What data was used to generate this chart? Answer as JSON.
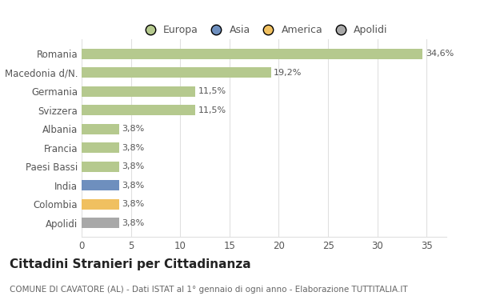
{
  "categories": [
    "Romania",
    "Macedonia d/N.",
    "Germania",
    "Svizzera",
    "Albania",
    "Francia",
    "Paesi Bassi",
    "India",
    "Colombia",
    "Apolidi"
  ],
  "values": [
    34.6,
    19.2,
    11.5,
    11.5,
    3.8,
    3.8,
    3.8,
    3.8,
    3.8,
    3.8
  ],
  "labels": [
    "34,6%",
    "19,2%",
    "11,5%",
    "11,5%",
    "3,8%",
    "3,8%",
    "3,8%",
    "3,8%",
    "3,8%",
    "3,8%"
  ],
  "colors": [
    "#b5c98e",
    "#b5c98e",
    "#b5c98e",
    "#b5c98e",
    "#b5c98e",
    "#b5c98e",
    "#b5c98e",
    "#6e8fbe",
    "#f0c060",
    "#a8a8a8"
  ],
  "legend_entries": [
    {
      "label": "Europa",
      "color": "#b5c98e"
    },
    {
      "label": "Asia",
      "color": "#6e8fbe"
    },
    {
      "label": "America",
      "color": "#f0c060"
    },
    {
      "label": "Apolidi",
      "color": "#a8a8a8"
    }
  ],
  "title": "Cittadini Stranieri per Cittadinanza",
  "subtitle": "COMUNE DI CAVATORE (AL) - Dati ISTAT al 1° gennaio di ogni anno - Elaborazione TUTTITALIA.IT",
  "xlim": [
    0,
    37
  ],
  "xticks": [
    0,
    5,
    10,
    15,
    20,
    25,
    30,
    35
  ],
  "background_color": "#ffffff",
  "grid_color": "#e0e0e0",
  "bar_height": 0.55,
  "title_fontsize": 11,
  "subtitle_fontsize": 7.5,
  "label_fontsize": 8,
  "tick_fontsize": 8.5,
  "legend_fontsize": 9,
  "label_color": "#555555",
  "tick_color": "#555555"
}
